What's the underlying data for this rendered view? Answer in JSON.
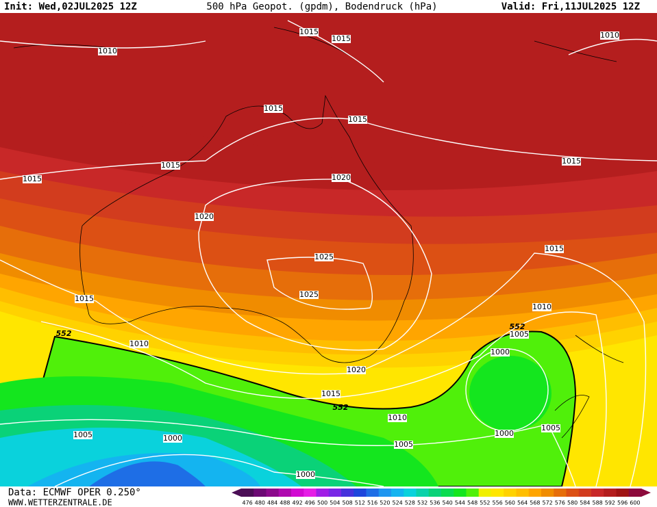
{
  "header": {
    "init": "Init: Wed,02JUL2025 12Z",
    "title": "500 hPa Geopot. (gpdm), Bodendruck (hPa)",
    "valid": "Valid: Fri,11JUL2025 12Z"
  },
  "map": {
    "isobar_labels": [
      1010,
      1015,
      1015,
      1010,
      1015,
      1015,
      1015,
      1015,
      1015,
      1020,
      1020,
      1025,
      1025,
      1015,
      1015,
      1010,
      1010,
      1005,
      1000,
      1020,
      1015,
      1010,
      1000,
      1005,
      1005,
      1000,
      1005,
      1000
    ],
    "geopotential_labels": [
      552,
      552,
      552
    ]
  },
  "colorbar": {
    "labels": [
      476,
      480,
      484,
      488,
      492,
      496,
      500,
      504,
      508,
      512,
      516,
      520,
      524,
      528,
      532,
      536,
      540,
      544,
      548,
      552,
      556,
      560,
      564,
      568,
      572,
      576,
      580,
      584,
      588,
      592,
      596,
      600
    ],
    "colors": [
      "#4b0e56",
      "#6c0a74",
      "#8c0a8c",
      "#b00ab0",
      "#d20ad2",
      "#e61ee6",
      "#a01ee6",
      "#7828e6",
      "#4632dc",
      "#1e46dc",
      "#1e6ee6",
      "#1e96f0",
      "#14b4f0",
      "#0ad2dc",
      "#0ad2aa",
      "#0ad278",
      "#0adc50",
      "#14e61e",
      "#50f00a",
      "#f0f000",
      "#ffe600",
      "#ffd200",
      "#ffbe00",
      "#ffa500",
      "#f08c00",
      "#e66e0a",
      "#dc5014",
      "#d23c1e",
      "#c82828",
      "#b41e1e",
      "#a01414",
      "#8c0a3c"
    ]
  },
  "footer": {
    "data": "Data: ECMWF OPER 0.250°",
    "site": "WWW.WETTERZENTRALE.DE"
  }
}
